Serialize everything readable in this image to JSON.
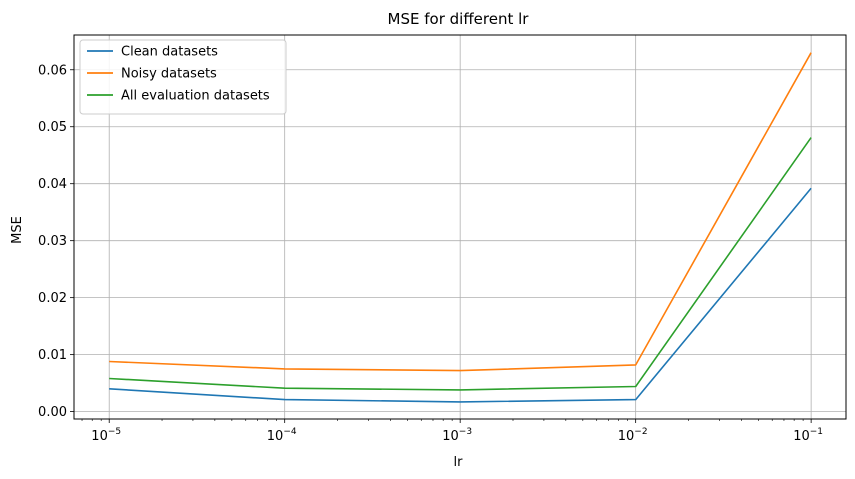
{
  "chart_data": {
    "type": "line",
    "title": "MSE for different lr",
    "xlabel": "lr",
    "ylabel": "MSE",
    "x_scale": "log",
    "x": [
      1e-05,
      0.0001,
      0.001,
      0.01,
      0.1
    ],
    "x_tick_labels": [
      {
        "base": "10",
        "exp": "−5"
      },
      {
        "base": "10",
        "exp": "−4"
      },
      {
        "base": "10",
        "exp": "−3"
      },
      {
        "base": "10",
        "exp": "−2"
      },
      {
        "base": "10",
        "exp": "−1"
      }
    ],
    "xlim": [
      6.3e-06,
      0.158
    ],
    "ylim": [
      -0.0013,
      0.0661
    ],
    "y_ticks": [
      0.0,
      0.01,
      0.02,
      0.03,
      0.04,
      0.05,
      0.06
    ],
    "y_tick_labels": [
      "0.00",
      "0.01",
      "0.02",
      "0.03",
      "0.04",
      "0.05",
      "0.06"
    ],
    "grid": true,
    "legend_position": "top-left",
    "series": [
      {
        "name": "Clean datasets",
        "color": "#1f77b4",
        "values": [
          0.004,
          0.0021,
          0.0017,
          0.0021,
          0.0392
        ]
      },
      {
        "name": "Noisy datasets",
        "color": "#ff7f0e",
        "values": [
          0.0088,
          0.0075,
          0.0072,
          0.0082,
          0.063
        ]
      },
      {
        "name": "All evaluation datasets",
        "color": "#2ca02c",
        "values": [
          0.0058,
          0.0041,
          0.0038,
          0.0044,
          0.0481
        ]
      }
    ]
  }
}
